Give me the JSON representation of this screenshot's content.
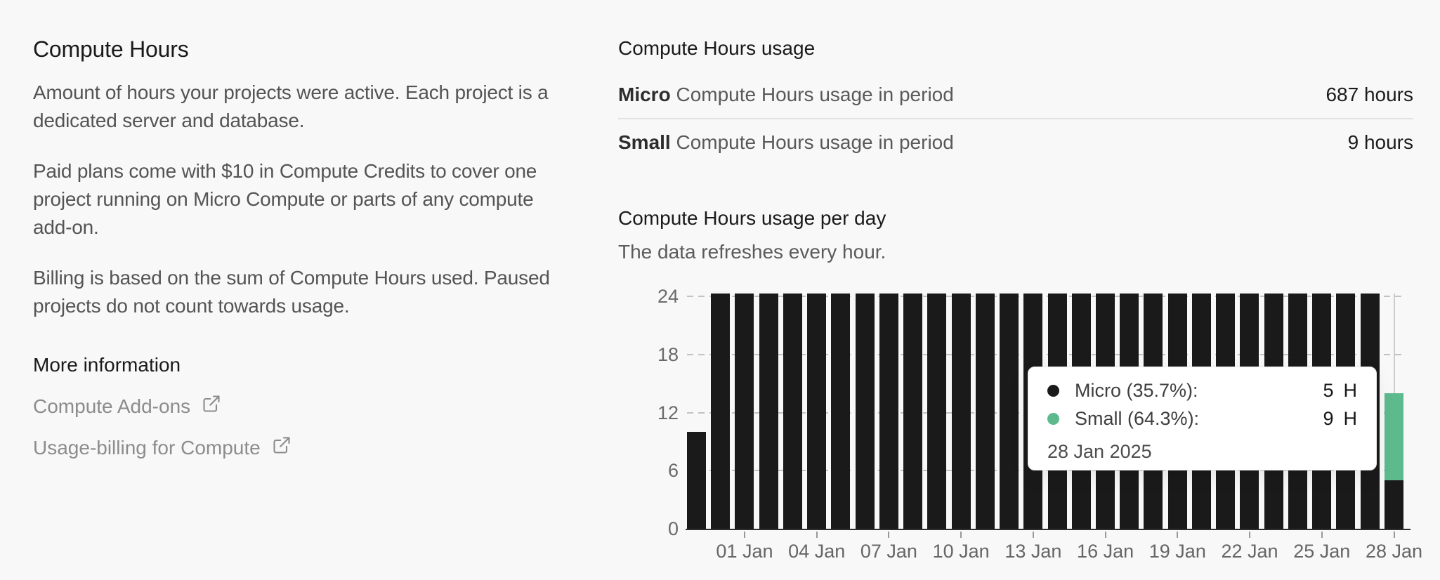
{
  "left": {
    "title": "Compute Hours",
    "paragraphs": [
      "Amount of hours your projects were active. Each project is a dedicated server and database.",
      "Paid plans come with $10 in Compute Credits to cover one project running on Micro Compute or parts of any compute add-on.",
      "Billing is based on the sum of Compute Hours used. Paused projects do not count towards usage."
    ],
    "more_info_title": "More information",
    "links": [
      {
        "label": "Compute Add-ons",
        "icon": "external-link-icon"
      },
      {
        "label": "Usage-billing for Compute",
        "icon": "external-link-icon"
      }
    ]
  },
  "usage": {
    "title": "Compute Hours usage",
    "rows": [
      {
        "name": "Micro",
        "rest": " Compute Hours usage in period",
        "value": "687 hours"
      },
      {
        "name": "Small",
        "rest": " Compute Hours usage in period",
        "value": "9 hours"
      }
    ]
  },
  "per_day": {
    "title": "Compute Hours usage per day",
    "subtitle": "The data refreshes every hour."
  },
  "chart_data": {
    "type": "bar",
    "stacked": true,
    "title": "Compute Hours usage per day",
    "xlabel": "",
    "ylabel": "",
    "unit": "hours",
    "ylim": [
      0,
      24
    ],
    "y_ticks": [
      0,
      6,
      12,
      18,
      24
    ],
    "grid": "dashed horizontal at 12, 18, 24 (and 6 behind bars)",
    "legend": false,
    "x_tick_labels": [
      "01 Jan",
      "04 Jan",
      "07 Jan",
      "10 Jan",
      "13 Jan",
      "16 Jan",
      "19 Jan",
      "22 Jan",
      "25 Jan",
      "28 Jan"
    ],
    "x_tick_indices": [
      2,
      5,
      8,
      11,
      14,
      17,
      20,
      23,
      26,
      29
    ],
    "hovered_bar_index": 29,
    "series": [
      {
        "name": "Micro",
        "color": "#1a1a1a",
        "values": [
          10,
          24,
          24,
          24,
          24,
          24,
          24,
          24,
          24,
          24,
          24,
          24,
          24,
          24,
          24,
          24,
          24,
          24,
          24,
          24,
          24,
          24,
          24,
          24,
          24,
          24,
          24,
          24,
          24,
          5
        ]
      },
      {
        "name": "Small",
        "color": "#5dba8c",
        "values": [
          0,
          0,
          0,
          0,
          0,
          0,
          0,
          0,
          0,
          0,
          0,
          0,
          0,
          0,
          0,
          0,
          0,
          0,
          0,
          0,
          0,
          0,
          0,
          0,
          0,
          0,
          0,
          0,
          0,
          9
        ]
      }
    ]
  },
  "tooltip": {
    "rows": [
      {
        "label": "Micro (35.7%):",
        "value": "5",
        "unit": "H",
        "color": "#1a1a1a"
      },
      {
        "label": "Small (64.3%):",
        "value": "9",
        "unit": "H",
        "color": "#5dba8c"
      }
    ],
    "date": "28 Jan 2025"
  },
  "colors": {
    "background": "#f8f8f8",
    "bar_micro": "#1a1a1a",
    "bar_small": "#5dba8c",
    "gridline": "#c2c2c2",
    "axis_line": "#2d2d2d",
    "divider": "#e2e2e2",
    "muted_text": "#545454",
    "link_text": "#8c8c8c"
  }
}
